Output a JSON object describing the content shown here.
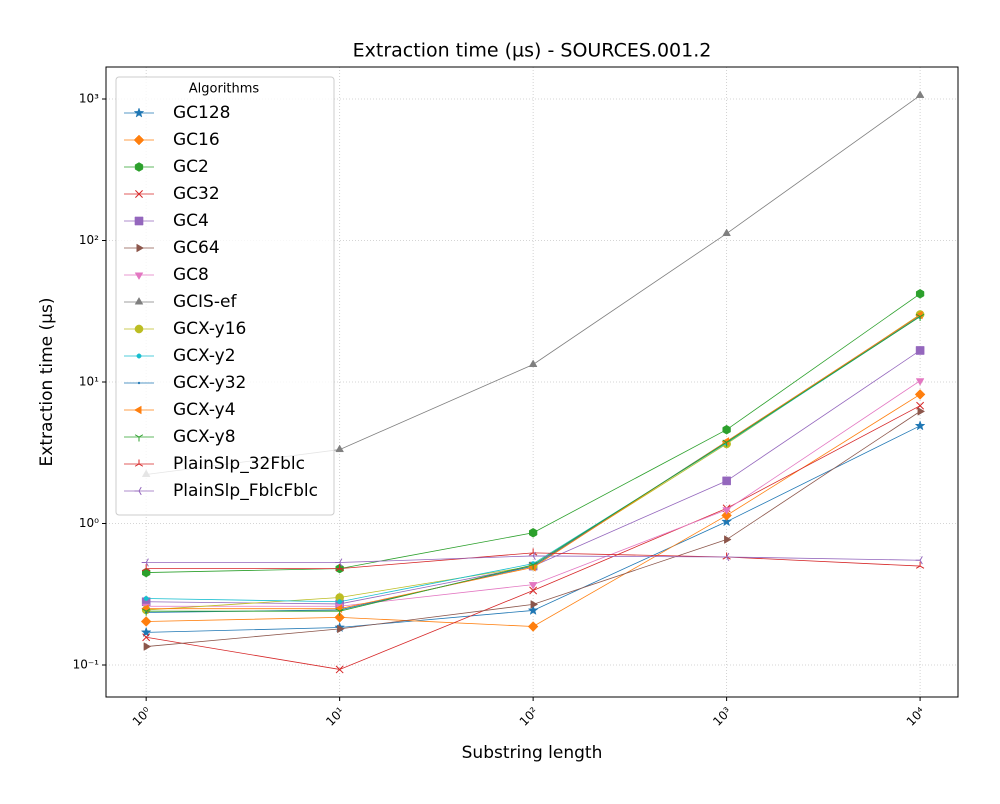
{
  "chart_data": {
    "type": "line",
    "title": "Extraction time (µs) - SOURCES.001.2",
    "x_label": "Substring length",
    "y_label": "Extraction time (µs)",
    "x": [
      1,
      10,
      100,
      1000,
      10000
    ],
    "xlim": [
      0.62,
      15700
    ],
    "ylim": [
      0.0594,
      1683
    ],
    "xscale": "log",
    "yscale": "log",
    "xticks": [
      {
        "value": 1,
        "label": "10⁰"
      },
      {
        "value": 10,
        "label": "10¹"
      },
      {
        "value": 100,
        "label": "10²"
      },
      {
        "value": 1000,
        "label": "10³"
      },
      {
        "value": 10000,
        "label": "10⁴"
      }
    ],
    "yticks": [
      {
        "value": 0.1,
        "label": "10⁻¹"
      },
      {
        "value": 1,
        "label": "10⁰"
      },
      {
        "value": 10,
        "label": "10¹"
      },
      {
        "value": 100,
        "label": "10²"
      },
      {
        "value": 1000,
        "label": "10³"
      }
    ],
    "grid": true,
    "legend_title": "Algorithms",
    "legend_position": "upper left",
    "series": [
      {
        "name": "GC128",
        "color": "#1f77b4",
        "marker": "*",
        "values": [
          0.17,
          0.184,
          0.243,
          1.03,
          4.9
        ]
      },
      {
        "name": "GC16",
        "color": "#ff7f0e",
        "marker": "D",
        "values": [
          0.203,
          0.217,
          0.187,
          1.14,
          8.17
        ]
      },
      {
        "name": "GC2",
        "color": "#2ca02c",
        "marker": "h",
        "values": [
          0.45,
          0.48,
          0.86,
          4.6,
          42
        ]
      },
      {
        "name": "GC32",
        "color": "#d62728",
        "marker": "x",
        "values": [
          0.157,
          0.093,
          0.336,
          1.28,
          6.8
        ]
      },
      {
        "name": "GC4",
        "color": "#9467bd",
        "marker": "s",
        "values": [
          0.28,
          0.27,
          0.5,
          2.0,
          16.7
        ]
      },
      {
        "name": "GC64",
        "color": "#8c564b",
        "marker": ">",
        "values": [
          0.135,
          0.18,
          0.268,
          0.77,
          6.2
        ]
      },
      {
        "name": "GC8",
        "color": "#e377c2",
        "marker": "v",
        "values": [
          0.26,
          0.26,
          0.37,
          1.25,
          10.2
        ]
      },
      {
        "name": "GCIS-ef",
        "color": "#7f7f7f",
        "marker": "^",
        "values": [
          2.22,
          3.33,
          13.3,
          112,
          1060
        ]
      },
      {
        "name": "GCX-y16",
        "color": "#bcbd22",
        "marker": "o",
        "values": [
          0.245,
          0.3,
          0.5,
          3.65,
          30
        ]
      },
      {
        "name": "GCX-y2",
        "color": "#17becf",
        "marker": ".",
        "values": [
          0.295,
          0.28,
          0.52,
          3.7,
          29
        ]
      },
      {
        "name": "GCX-y32",
        "color": "#1f77b4",
        "marker": ",",
        "values": [
          0.235,
          0.245,
          0.5,
          3.8,
          29.5
        ]
      },
      {
        "name": "GCX-y4",
        "color": "#ff7f0e",
        "marker": "<",
        "values": [
          0.25,
          0.25,
          0.49,
          3.8,
          29.7
        ]
      },
      {
        "name": "GCX-y8",
        "color": "#2ca02c",
        "marker": "1",
        "values": [
          0.24,
          0.24,
          0.51,
          3.75,
          29
        ]
      },
      {
        "name": "PlainSlp_32Fblc",
        "color": "#d62728",
        "marker": "2",
        "values": [
          0.48,
          0.48,
          0.62,
          0.58,
          0.5
        ]
      },
      {
        "name": "PlainSlp_FblcFblc",
        "color": "#9467bd",
        "marker": "3",
        "values": [
          0.53,
          0.53,
          0.59,
          0.58,
          0.55
        ]
      }
    ]
  }
}
